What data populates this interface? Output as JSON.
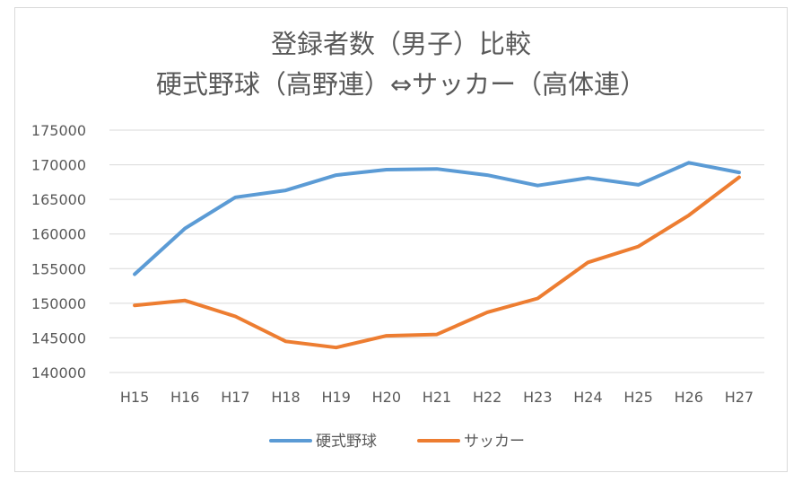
{
  "chart_data": {
    "type": "line",
    "title": [
      "登録者数（男子）比較",
      "硬式野球（高野連）⇔サッカー（高体連）"
    ],
    "xlabel": "",
    "ylabel": "",
    "categories": [
      "H15",
      "H16",
      "H17",
      "H18",
      "H19",
      "H20",
      "H21",
      "H22",
      "H23",
      "H24",
      "H25",
      "H26",
      "H27"
    ],
    "ylim": [
      140000,
      175000
    ],
    "yticks": [
      140000,
      145000,
      150000,
      155000,
      160000,
      165000,
      170000,
      175000
    ],
    "grid": true,
    "legend": "bottom",
    "series": [
      {
        "name": "硬式野球",
        "color": "#5b9bd5",
        "values": [
          154200,
          160800,
          165300,
          166300,
          168500,
          169300,
          169400,
          168500,
          167000,
          168100,
          167100,
          170300,
          168900
        ]
      },
      {
        "name": "サッカー",
        "color": "#ed7d31",
        "values": [
          149700,
          150400,
          148100,
          144500,
          143600,
          145300,
          145500,
          148700,
          150700,
          155900,
          158200,
          162700,
          168200
        ]
      }
    ]
  }
}
